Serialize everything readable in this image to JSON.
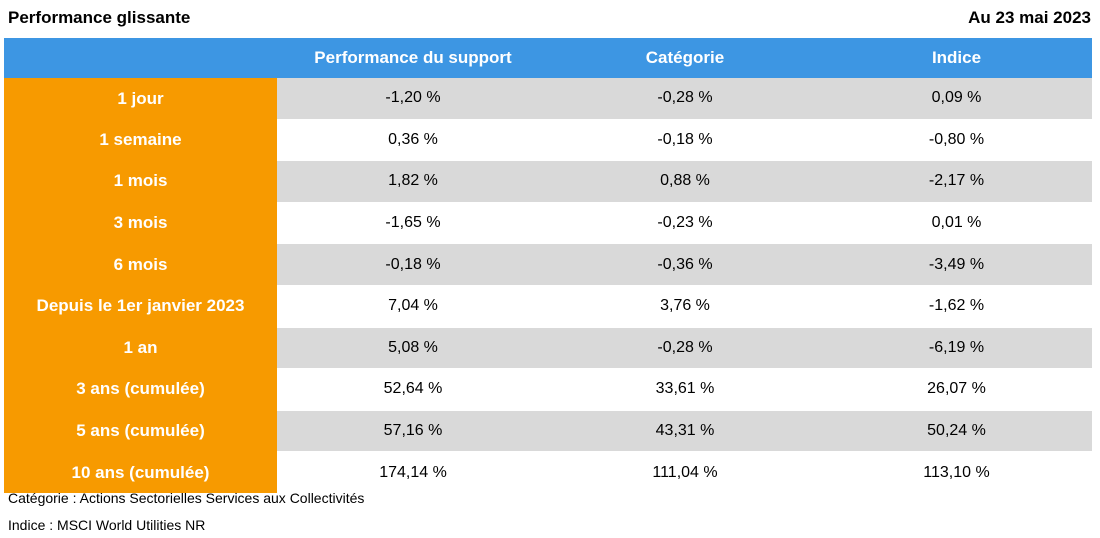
{
  "header": {
    "title": "Performance glissante",
    "date": "Au 23 mai 2023"
  },
  "table": {
    "columns": [
      "",
      "Performance du support",
      "Catégorie",
      "Indice"
    ],
    "rows": [
      {
        "label": "1 jour",
        "support": "-1,20 %",
        "categorie": "-0,28 %",
        "indice": "0,09 %"
      },
      {
        "label": "1 semaine",
        "support": "0,36 %",
        "categorie": "-0,18 %",
        "indice": "-0,80 %"
      },
      {
        "label": "1 mois",
        "support": "1,82 %",
        "categorie": "0,88 %",
        "indice": "-2,17 %"
      },
      {
        "label": "3 mois",
        "support": "-1,65 %",
        "categorie": "-0,23 %",
        "indice": "0,01 %"
      },
      {
        "label": "6 mois",
        "support": "-0,18 %",
        "categorie": "-0,36 %",
        "indice": "-3,49 %"
      },
      {
        "label": "Depuis le 1er janvier 2023",
        "support": "7,04 %",
        "categorie": "3,76 %",
        "indice": "-1,62 %"
      },
      {
        "label": "1 an",
        "support": "5,08 %",
        "categorie": "-0,28 %",
        "indice": "-6,19 %"
      },
      {
        "label": "3 ans (cumulée)",
        "support": "52,64 %",
        "categorie": "33,61 %",
        "indice": "26,07 %"
      },
      {
        "label": "5 ans (cumulée)",
        "support": "57,16 %",
        "categorie": "43,31 %",
        "indice": "50,24 %"
      },
      {
        "label": "10 ans (cumulée)",
        "support": "174,14 %",
        "categorie": "111,04 %",
        "indice": "113,10 %"
      }
    ]
  },
  "footnotes": {
    "categorie": "Catégorie : Actions Sectorielles Services aux Collectivités",
    "indice": "Indice : MSCI World Utilities NR"
  },
  "colors": {
    "header_bg": "#3d96e3",
    "label_bg": "#f79a00",
    "shaded_row": "#d9d9d9"
  }
}
